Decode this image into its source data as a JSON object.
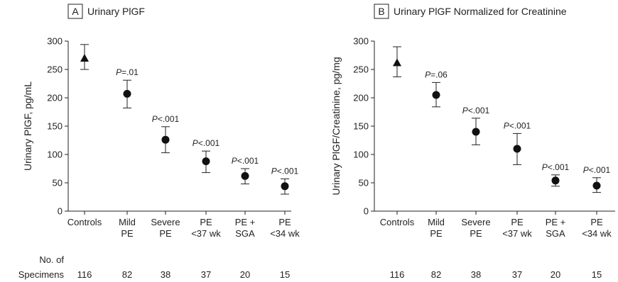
{
  "footer": {
    "specimens_label_line1": "No. of",
    "specimens_label_line2": "Specimens"
  },
  "chart_data": [
    {
      "type": "scatter",
      "panel_letter": "A",
      "title": "Urinary PlGF",
      "ylabel": "Urinary PlGF, pg/mL",
      "ylim": [
        0,
        300
      ],
      "yticks": [
        0,
        50,
        100,
        150,
        200,
        250,
        300
      ],
      "categories": [
        [
          "Controls"
        ],
        [
          "Mild",
          "PE"
        ],
        [
          "Severe",
          "PE"
        ],
        [
          "PE",
          "<37 wk"
        ],
        [
          "PE +",
          "SGA"
        ],
        [
          "PE",
          "<34 wk"
        ]
      ],
      "series": [
        {
          "values": [
            270,
            207,
            126,
            88,
            62,
            44
          ],
          "error_low": [
            250,
            182,
            103,
            68,
            48,
            30
          ],
          "error_high": [
            294,
            231,
            149,
            106,
            75,
            57
          ],
          "markers": [
            "triangle",
            "circle",
            "circle",
            "circle",
            "circle",
            "circle"
          ]
        }
      ],
      "p_values": [
        "",
        "P=.01",
        "P<.001",
        "P<.001",
        "P<.001",
        "P<.001"
      ],
      "specimens": [
        "116",
        "82",
        "38",
        "37",
        "20",
        "15"
      ]
    },
    {
      "type": "scatter",
      "panel_letter": "B",
      "title": "Urinary PlGF Normalized for Creatinine",
      "ylabel": "Urinary PlGF/Creatinine, pg/mg",
      "ylim": [
        0,
        300
      ],
      "yticks": [
        0,
        50,
        100,
        150,
        200,
        250,
        300
      ],
      "categories": [
        [
          "Controls"
        ],
        [
          "Mild",
          "PE"
        ],
        [
          "Severe",
          "PE"
        ],
        [
          "PE",
          "<37 wk"
        ],
        [
          "PE +",
          "SGA"
        ],
        [
          "PE",
          "<34 wk"
        ]
      ],
      "series": [
        {
          "values": [
            262,
            205,
            140,
            110,
            54,
            45
          ],
          "error_low": [
            237,
            184,
            117,
            82,
            44,
            33
          ],
          "error_high": [
            290,
            227,
            164,
            137,
            64,
            59
          ],
          "markers": [
            "triangle",
            "circle",
            "circle",
            "circle",
            "circle",
            "circle"
          ]
        }
      ],
      "p_values": [
        "",
        "P=.06",
        "P<.001",
        "P<.001",
        "P<.001",
        "P<.001"
      ],
      "specimens": [
        "116",
        "82",
        "38",
        "37",
        "20",
        "15"
      ]
    }
  ]
}
